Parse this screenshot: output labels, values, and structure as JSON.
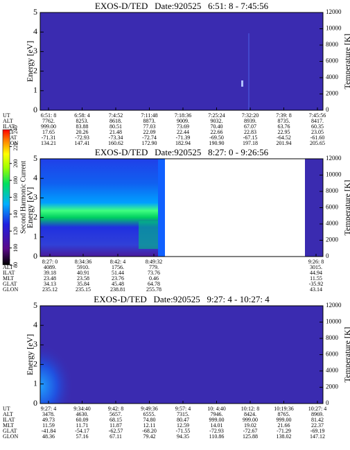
{
  "colorbar": {
    "label": "Second Harmonic Current",
    "lim": [
      80,
      240
    ],
    "ticks": [
      80,
      100,
      120,
      140,
      160,
      180,
      200,
      220,
      240
    ]
  },
  "panels": [
    {
      "type": "heatmap",
      "title": "EXOS-D/TED   Date:920525   6:51: 8 - 7:45:56",
      "ylabel": "Energy [eV]",
      "y2label": "Temperature [K]",
      "ylim": [
        0,
        5
      ],
      "yticks": [
        0,
        1,
        2,
        3,
        4,
        5
      ],
      "y2lim": [
        0,
        12000
      ],
      "y2ticks": [
        0,
        2000,
        4000,
        6000,
        8000,
        10000,
        12000
      ],
      "ephemeris": {
        "labels": [
          "UT",
          "ALT",
          "ILAT",
          "MLT",
          "GLAT",
          "GLON"
        ],
        "columns": [
          [
            "6:51: 8",
            "7762.",
            "999.00",
            "17.65",
            "-71.31",
            "134.21"
          ],
          [
            "6:58: 4",
            "8253.",
            "83.88",
            "20.26",
            "-72.93",
            "147.41"
          ],
          [
            "7:4:52",
            "8618.",
            "80.51",
            "21.48",
            "-73.34",
            "160.62"
          ],
          [
            "7:11:48",
            "8873.",
            "77.03",
            "22.09",
            "-72.74",
            "172.90"
          ],
          [
            "7:18:36",
            "9009.",
            "73.69",
            "22.44",
            "-71.39",
            "182.94"
          ],
          [
            "7:25:24",
            "9032.",
            "70.40",
            "22.66",
            "-69.50",
            "190.90"
          ],
          [
            "7:32:20",
            "8939.",
            "67.07",
            "22.83",
            "-67.15",
            "197.18"
          ],
          [
            "7:39: 8",
            "8735.",
            "63.76",
            "22.95",
            "-64.52",
            "201.94"
          ],
          [
            "7:45:56",
            "8417.",
            "60.35",
            "23.05",
            "-61.60",
            "205.65"
          ]
        ]
      }
    },
    {
      "type": "heatmap",
      "title": "EXOS-D/TED   Date:920525   8:27: 0 - 9:26:56",
      "ylabel": "Energy [eV]",
      "y2label": "Temperature [K]",
      "ylim": [
        0,
        5
      ],
      "yticks": [
        0,
        1,
        2,
        3,
        4,
        5
      ],
      "y2lim": [
        0,
        12000
      ],
      "y2ticks": [
        0,
        2000,
        4000,
        6000,
        8000,
        10000,
        12000
      ],
      "ephemeris": {
        "labels": [
          "UT",
          "ALT",
          "ILAT",
          "MLT",
          "GLAT",
          "GLON"
        ],
        "columns": [
          [
            "8:27: 0",
            "4089.",
            "39.18",
            "23.48",
            "34.13",
            "235.12"
          ],
          [
            "8:34:36",
            "5910.",
            "40.91",
            "23.58",
            "35.84",
            "235.15"
          ],
          [
            "8:42: 4",
            "1756.",
            "51.44",
            "23.76",
            "45.48",
            "238.81"
          ],
          [
            "8:49:32",
            "779.",
            "73.76",
            "0.46",
            "64.78",
            "255.78"
          ],
          [
            "9:26: 8",
            "3015.",
            "44.94",
            "11.55",
            "-35.92",
            "43.14"
          ]
        ]
      }
    },
    {
      "type": "heatmap",
      "title": "EXOS-D/TED   Date:920525   9:27: 4 - 10:27: 4",
      "ylabel": "Energy [eV]",
      "y2label": "Temperature [K]",
      "ylim": [
        0,
        5
      ],
      "yticks": [
        0,
        1,
        2,
        3,
        4,
        5
      ],
      "y2lim": [
        0,
        12000
      ],
      "y2ticks": [
        0,
        2000,
        4000,
        6000,
        8000,
        10000,
        12000
      ],
      "ephemeris": {
        "labels": [
          "UT",
          "ALT",
          "ILAT",
          "MLT",
          "GLAT",
          "GLON"
        ],
        "columns": [
          [
            "9:27: 4",
            "3478.",
            "49.73",
            "11.59",
            "-41.84",
            "48.36"
          ],
          [
            "9:34:40",
            "4630.",
            "60.09",
            "11.71",
            "-54.17",
            "57.16"
          ],
          [
            "9:42: 8",
            "5657.",
            "68.15",
            "11.87",
            "-62.57",
            "67.11"
          ],
          [
            "9:49:36",
            "6555.",
            "74.80",
            "12.11",
            "-68.20",
            "79.42"
          ],
          [
            "9:57: 4",
            "7315.",
            "80.47",
            "12.59",
            "-71.55",
            "94.35"
          ],
          [
            "10: 4:40",
            "7946.",
            "999.00",
            "14.01",
            "-72.93",
            "110.86"
          ],
          [
            "10:12: 8",
            "8424.",
            "999.00",
            "19.02",
            "-72.67",
            "125.88"
          ],
          [
            "10:19:36",
            "8765.",
            "999.00",
            "21.66",
            "-71.29",
            "138.02"
          ],
          [
            "10:27: 4",
            "8969.",
            "81.42",
            "22.37",
            "-69.19",
            "147.12"
          ]
        ]
      }
    }
  ]
}
